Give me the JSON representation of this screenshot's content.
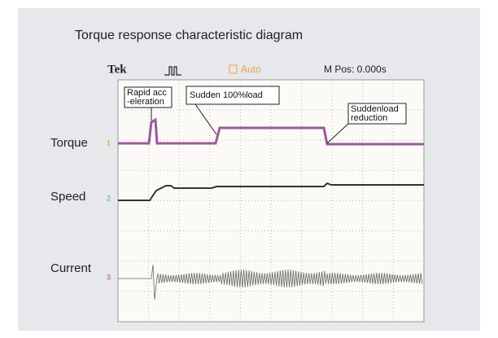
{
  "title": "Torque response characteristic diagram",
  "scope_header": {
    "brand": "Tek",
    "trigger_mode": "Auto",
    "position": "M Pos: 0.000s"
  },
  "channels": [
    {
      "label": "Torque",
      "number": "1"
    },
    {
      "label": "Speed",
      "number": "2"
    },
    {
      "label": "Current",
      "number": "3"
    }
  ],
  "annotations": [
    {
      "lines": [
        "Rapid acc",
        "-eleration"
      ]
    },
    {
      "lines": [
        "Sudden 100%load"
      ]
    },
    {
      "lines": [
        "Suddenload",
        "reduction"
      ]
    }
  ]
}
